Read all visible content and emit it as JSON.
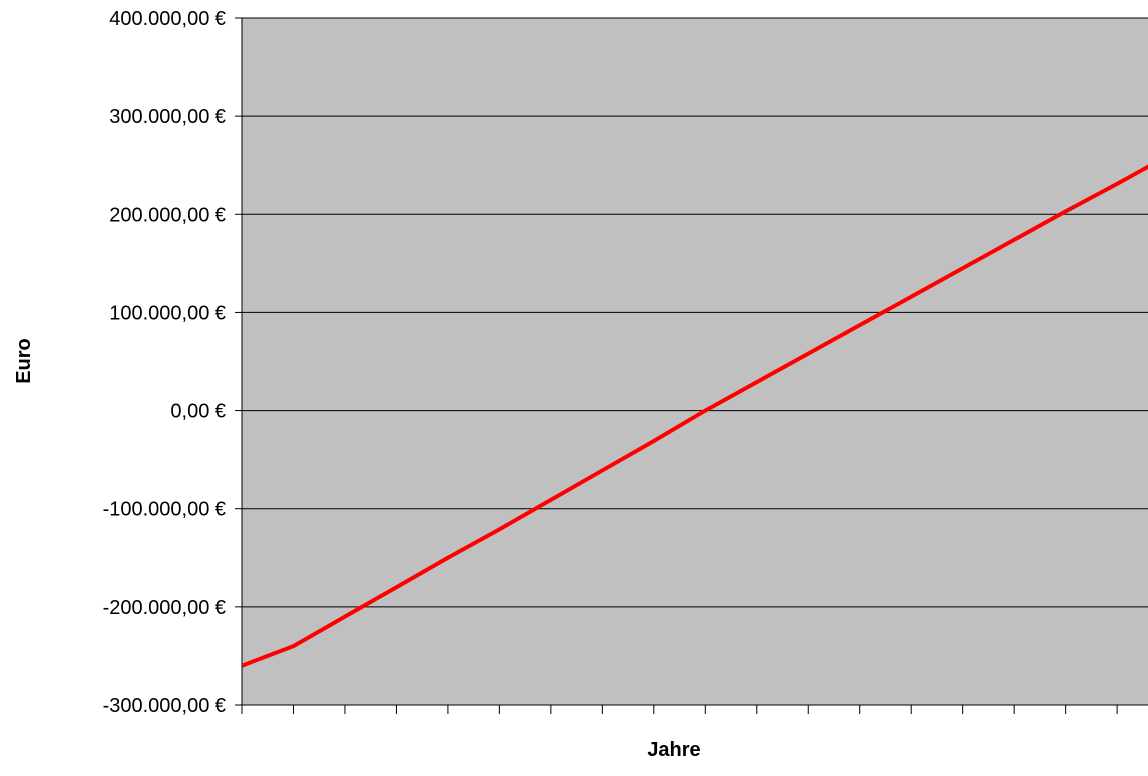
{
  "chart_data": {
    "type": "line",
    "title": "",
    "xlabel": "Jahre",
    "ylabel": "Euro",
    "x": [
      0,
      1,
      2,
      3,
      4,
      5,
      6,
      7,
      8,
      9,
      10,
      11,
      12,
      13,
      14,
      15,
      16,
      17,
      18
    ],
    "series": [
      {
        "color": "#ff0000",
        "values": [
          -260000,
          -240000,
          -210000,
          -180000,
          -150000,
          -121000,
          -91000,
          -61000,
          -31000,
          0,
          29000,
          58000,
          87000,
          116000,
          145000,
          174000,
          203000,
          231000,
          260000
        ]
      }
    ],
    "ylim": [
      -300000,
      400000
    ],
    "xlim": [
      0,
      17.6
    ],
    "yticks": [
      {
        "value": -300000,
        "label": "-300.000,00 €"
      },
      {
        "value": -200000,
        "label": "-200.000,00 €"
      },
      {
        "value": -100000,
        "label": "-100.000,00 €"
      },
      {
        "value": 0,
        "label": "0,00 €"
      },
      {
        "value": 100000,
        "label": "100.000,00 €"
      },
      {
        "value": 200000,
        "label": "200.000,00 €"
      },
      {
        "value": 300000,
        "label": "300.000,00 €"
      },
      {
        "value": 400000,
        "label": "400.000,00 €"
      }
    ],
    "xtick_count": 18,
    "grid": true,
    "legend": "none",
    "plot_background": "#c0c0c0",
    "grid_color": "#000000"
  }
}
